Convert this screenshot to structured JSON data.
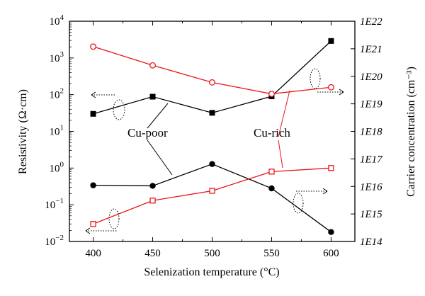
{
  "chart_data": {
    "type": "line",
    "x": [
      400,
      450,
      500,
      550,
      600
    ],
    "xlabel": "Selenization temperature (°C)",
    "ylabel_left": "Resistivity (Ω·cm)",
    "ylabel_right": "Carrier concentration (cm⁻³)",
    "xlim": [
      380,
      620
    ],
    "ylim_left": [
      0.01,
      10000
    ],
    "ylim_right": [
      100000000000000.0,
      1e+22
    ],
    "y_scale": "log",
    "x_ticks": [
      "400",
      "450",
      "500",
      "550",
      "600"
    ],
    "y_ticks_left": [
      {
        "base": "10",
        "exp": "4"
      },
      {
        "base": "10",
        "exp": "3"
      },
      {
        "base": "10",
        "exp": "2"
      },
      {
        "base": "10",
        "exp": "1"
      },
      {
        "base": "10",
        "exp": "0"
      },
      {
        "base": "10",
        "exp": "−1"
      },
      {
        "base": "10",
        "exp": "−2"
      }
    ],
    "y_ticks_right": [
      "1E22",
      "1E21",
      "1E20",
      "1E19",
      "1E18",
      "1E17",
      "1E16",
      "1E15",
      "1E14"
    ],
    "annotations": [
      "Cu-poor",
      "Cu-rich"
    ],
    "series": [
      {
        "group": "Cu-poor",
        "quantity": "resistivity",
        "axis": "left",
        "color": "#000000",
        "marker": "filled-square",
        "values": [
          30,
          88,
          32,
          90,
          2900
        ]
      },
      {
        "group": "Cu-poor",
        "quantity": "carrier concentration",
        "axis": "right",
        "color": "#000000",
        "marker": "filled-circle",
        "values": [
          1.1e+16,
          1.05e+16,
          6.5e+16,
          8500000000000000.0,
          220000000000000.0
        ]
      },
      {
        "group": "Cu-rich",
        "quantity": "carrier concentration",
        "axis": "right",
        "color": "#e8151b",
        "marker": "open-circle",
        "values": [
          1.2e+21,
          2.5e+20,
          6e+19,
          2.3e+19,
          4e+19
        ]
      },
      {
        "group": "Cu-rich",
        "quantity": "resistivity",
        "axis": "left",
        "color": "#e8151b",
        "marker": "open-square",
        "values": [
          0.03,
          0.13,
          0.24,
          0.8,
          1.0
        ]
      }
    ]
  }
}
